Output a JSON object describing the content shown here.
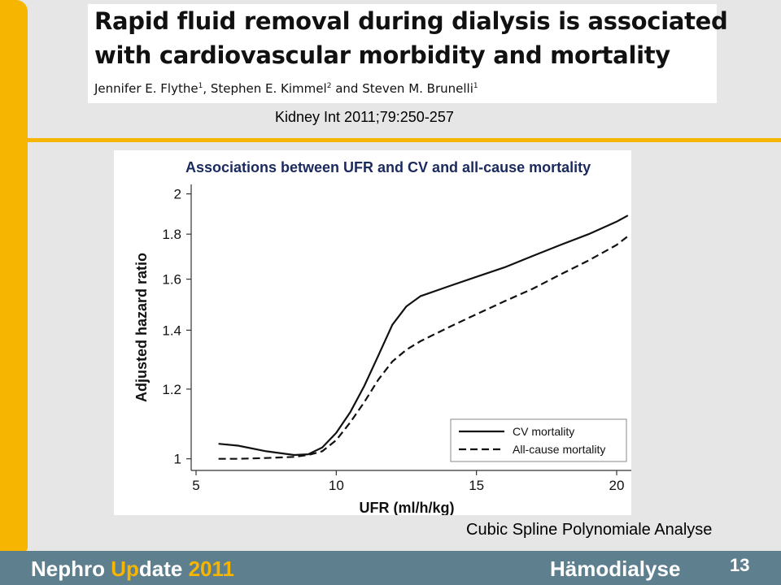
{
  "header": {
    "title_line1": "Rapid fluid removal during dialysis is associated",
    "title_line2": "with cardiovascular morbidity and mortality",
    "authors": [
      {
        "name": "Jennifer E. Flythe",
        "sup": "1",
        "sep": ", "
      },
      {
        "name": "Stephen E. Kimmel",
        "sup": "2",
        "sep": " and "
      },
      {
        "name": "Steven M. Brunelli",
        "sup": "1",
        "sep": ""
      }
    ],
    "citation": "Kidney Int 2011;79:250-257"
  },
  "caption": "Cubic Spline Polynomiale Analyse",
  "footer": {
    "brand_part1": "Nephro ",
    "brand_part2": "Up",
    "brand_part3": "date ",
    "brand_year": "2011",
    "section": "Hämodialyse",
    "page_number": "13"
  },
  "colors": {
    "accent": "#f6b500",
    "footer_bg": "#5d7f8e",
    "background": "#e6e6e6"
  },
  "chart_data": {
    "type": "line",
    "title": "Associations between UFR and CV and all-cause mortality",
    "xlabel": "UFR (ml/h/kg)",
    "ylabel": "Adjusted hazard ratio",
    "xlim": [
      5,
      21
    ],
    "ylim": [
      0.97,
      2.05
    ],
    "y_scale": "log",
    "xticks": [
      5,
      10,
      15,
      20
    ],
    "yticks": [
      1,
      1.2,
      1.4,
      1.6,
      1.8,
      2
    ],
    "ytick_labels": [
      "1",
      "1.2",
      "1.4",
      "1.6",
      "1.8",
      "2"
    ],
    "grid": false,
    "legend_position": "bottom-right",
    "series": [
      {
        "name": "CV mortality",
        "style": "solid",
        "x": [
          5.8,
          6.5,
          7.5,
          8.5,
          9.0,
          9.5,
          10.0,
          10.5,
          11.0,
          11.5,
          12.0,
          12.5,
          13.0,
          14.0,
          15.0,
          16.0,
          17.0,
          18.0,
          19.0,
          20.0,
          20.4
        ],
        "y": [
          1.04,
          1.035,
          1.02,
          1.01,
          1.012,
          1.03,
          1.07,
          1.13,
          1.21,
          1.31,
          1.42,
          1.49,
          1.53,
          1.57,
          1.61,
          1.65,
          1.7,
          1.75,
          1.8,
          1.86,
          1.89
        ]
      },
      {
        "name": "All-cause mortality",
        "style": "dashed",
        "x": [
          5.8,
          6.5,
          7.5,
          8.5,
          9.0,
          9.5,
          10.0,
          10.5,
          11.0,
          11.5,
          12.0,
          12.5,
          13.0,
          14.0,
          15.0,
          16.0,
          17.0,
          18.0,
          19.0,
          20.0,
          20.4
        ],
        "y": [
          1.0,
          1.0,
          1.002,
          1.005,
          1.01,
          1.02,
          1.05,
          1.1,
          1.16,
          1.23,
          1.29,
          1.33,
          1.36,
          1.41,
          1.46,
          1.51,
          1.56,
          1.62,
          1.68,
          1.75,
          1.79
        ]
      }
    ]
  }
}
